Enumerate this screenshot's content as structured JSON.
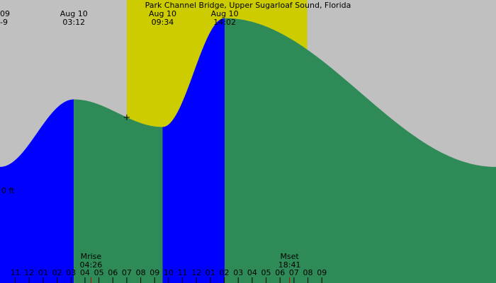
{
  "chart_data": {
    "type": "area",
    "title": "Park Channel Bridge, Upper Sugarloaf Sound, Florida",
    "colors": {
      "background": "#c0c0c0",
      "daylight": "#cccc00",
      "rising": "#0000ff",
      "falling": "#2e8b57"
    },
    "x_range_hours": [
      -2.1,
      33.5
    ],
    "y_range_ft": [
      -2.3,
      1.6
    ],
    "tick_hours": [
      -1,
      0,
      1,
      2,
      3,
      4,
      5,
      6,
      7,
      8,
      9,
      10,
      11,
      12,
      13,
      14,
      15,
      16,
      17,
      18,
      19,
      20,
      21
    ],
    "tick_labels": [
      "11",
      "12",
      "01",
      "02",
      "03",
      "04",
      "05",
      "06",
      "07",
      "08",
      "09",
      "10",
      "11",
      "12",
      "01",
      "02",
      "03",
      "04",
      "05",
      "06",
      "07",
      "08",
      "09"
    ],
    "daylight_hours": [
      7.0,
      19.95
    ],
    "zero_label": "0 ft",
    "extremes": [
      {
        "kind": "high",
        "hour": 3.2,
        "height": 0.23
      },
      {
        "kind": "low",
        "hour": 9.57,
        "height": -0.15
      },
      {
        "kind": "high",
        "hour": 14.03,
        "height": 1.35
      }
    ],
    "curve": [
      {
        "hour": -2.1,
        "height": -0.7
      },
      {
        "hour": 3.2,
        "height": 0.23
      },
      {
        "hour": 9.57,
        "height": -0.15
      },
      {
        "hour": 14.03,
        "height": 1.35
      },
      {
        "hour": 33.5,
        "height": -0.7
      }
    ],
    "top_labels": [
      {
        "hour": -1.9,
        "date": "09",
        "time": "-9"
      },
      {
        "hour": 3.2,
        "date": "Aug 10",
        "time": "03:12"
      },
      {
        "hour": 9.57,
        "date": "Aug 10",
        "time": "09:34"
      },
      {
        "hour": 14.03,
        "date": "Aug 10",
        "time": "14:02"
      }
    ],
    "moon_events": [
      {
        "label": "Mrise",
        "time": "04:26",
        "hour": 4.43
      },
      {
        "label": "Mset",
        "time": "18:41",
        "hour": 18.68
      }
    ],
    "now_hour": 7.0
  }
}
